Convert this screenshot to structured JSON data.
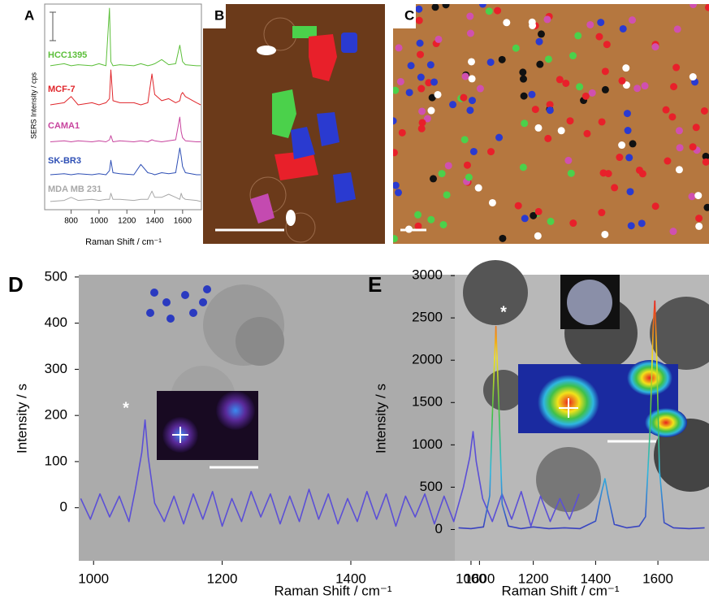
{
  "chart_data": [
    {
      "type": "line",
      "label": "A",
      "xlabel": "Raman Shift / cm⁻¹",
      "ylabel": "SERS Intensity / cps",
      "xlim": [
        610,
        1735
      ],
      "ylim": [
        0,
        100
      ],
      "xticks": [
        800,
        1000,
        1200,
        1400,
        1600
      ],
      "x": [
        650,
        750,
        800,
        850,
        950,
        1000,
        1050,
        1075,
        1085,
        1100,
        1150,
        1250,
        1300,
        1350,
        1380,
        1400,
        1450,
        1500,
        1550,
        1580,
        1590,
        1600,
        1620,
        1700,
        1730
      ],
      "series": [
        {
          "name": "HCC1395",
          "color": "#5cbf3a",
          "values": [
            70,
            71,
            70,
            70.5,
            70,
            71,
            70,
            98,
            72,
            70,
            70.5,
            70,
            71,
            70,
            70.5,
            71,
            73,
            70.5,
            71,
            80,
            76,
            72,
            70.5,
            70,
            70
          ]
        },
        {
          "name": "MCF-7",
          "color": "#e0262b",
          "values": [
            51,
            52,
            55,
            51,
            52,
            51,
            52,
            54,
            68,
            53,
            52,
            52,
            51,
            52,
            66,
            56,
            53,
            54,
            52,
            53,
            56,
            57,
            55,
            52,
            51
          ]
        },
        {
          "name": "CAMA1",
          "color": "#c8449e",
          "values": [
            33,
            33.5,
            33,
            33.5,
            33,
            33.5,
            33,
            34,
            36,
            33,
            33.5,
            33,
            33.5,
            33,
            34,
            33.5,
            33,
            33.5,
            34,
            45,
            38,
            35,
            33.5,
            33,
            33
          ]
        },
        {
          "name": "SK-BR3",
          "color": "#2e4fb5",
          "values": [
            17,
            17.5,
            17,
            17.5,
            17,
            17.5,
            17,
            19,
            24,
            18,
            17.5,
            17,
            22,
            18,
            17.5,
            17,
            18,
            17.5,
            18,
            30,
            26,
            21,
            18,
            17,
            17
          ]
        },
        {
          "name": "MDA MB 231",
          "color": "#a8a8a8",
          "values": [
            4,
            4.5,
            6,
            4.5,
            5,
            4.5,
            5,
            5,
            8,
            5,
            5,
            4.5,
            5,
            5,
            9,
            6,
            6,
            7.5,
            6,
            5,
            8,
            6,
            5,
            4.5,
            4
          ]
        }
      ]
    },
    {
      "type": "image",
      "label": "B"
    },
    {
      "type": "image",
      "label": "C"
    },
    {
      "type": "line",
      "label": "D",
      "xlabel": "Raman Shift / cm⁻¹",
      "ylabel": "Intensity / s",
      "annotation": "*",
      "xlim": [
        977,
        1770
      ],
      "ylim": [
        -115,
        505
      ],
      "xticks": [
        1000,
        1200,
        1400,
        1600
      ],
      "yticks": [
        0,
        100,
        200,
        300,
        400,
        500
      ],
      "x": [
        980,
        995,
        1010,
        1025,
        1040,
        1055,
        1065,
        1075,
        1080,
        1085,
        1095,
        1110,
        1125,
        1140,
        1155,
        1170,
        1185,
        1200,
        1215,
        1230,
        1245,
        1260,
        1275,
        1290,
        1305,
        1320,
        1335,
        1350,
        1365,
        1380,
        1395,
        1410,
        1425,
        1440,
        1455,
        1470,
        1485,
        1500,
        1515,
        1530,
        1545,
        1560,
        1575,
        1585,
        1590,
        1595,
        1605,
        1620,
        1635,
        1650,
        1665,
        1680,
        1695,
        1710,
        1725,
        1740,
        1755
      ],
      "series": [
        {
          "color": "#5b4fd6",
          "values": [
            20,
            -25,
            30,
            -20,
            25,
            -30,
            40,
            120,
            190,
            110,
            10,
            -30,
            25,
            -35,
            30,
            -25,
            35,
            -40,
            20,
            -30,
            35,
            -20,
            30,
            -35,
            25,
            -30,
            40,
            -25,
            30,
            -35,
            20,
            -30,
            35,
            -25,
            30,
            -40,
            25,
            -20,
            30,
            -35,
            25,
            -30,
            45,
            110,
            165,
            100,
            20,
            -30,
            30,
            -25,
            35,
            -40,
            25,
            -30,
            20,
            -25,
            30
          ]
        }
      ]
    },
    {
      "type": "line",
      "label": "E",
      "xlabel": "Raman Shift / cm⁻¹",
      "ylabel": "Intensity / s",
      "annotation": "*",
      "xlim": [
        948,
        1764
      ],
      "ylim": [
        -370,
        3010
      ],
      "xticks": [
        1000,
        1200,
        1400,
        1600
      ],
      "yticks": [
        0,
        500,
        1000,
        1500,
        2000,
        2500,
        3000
      ],
      "colormap": [
        "#3a3fbf",
        "#2fb7e0",
        "#3fc04a",
        "#f2e21a",
        "#e8231e"
      ],
      "x": [
        960,
        1000,
        1040,
        1060,
        1070,
        1080,
        1090,
        1100,
        1120,
        1160,
        1200,
        1250,
        1300,
        1350,
        1400,
        1420,
        1430,
        1440,
        1460,
        1500,
        1540,
        1560,
        1575,
        1585,
        1590,
        1595,
        1605,
        1620,
        1650,
        1700,
        1750
      ],
      "series": [
        {
          "values": [
            20,
            10,
            30,
            400,
            1500,
            2400,
            1400,
            300,
            40,
            10,
            30,
            10,
            20,
            10,
            100,
            450,
            600,
            400,
            60,
            20,
            40,
            150,
            1200,
            2400,
            2700,
            2200,
            700,
            80,
            20,
            10,
            20
          ]
        }
      ]
    }
  ]
}
